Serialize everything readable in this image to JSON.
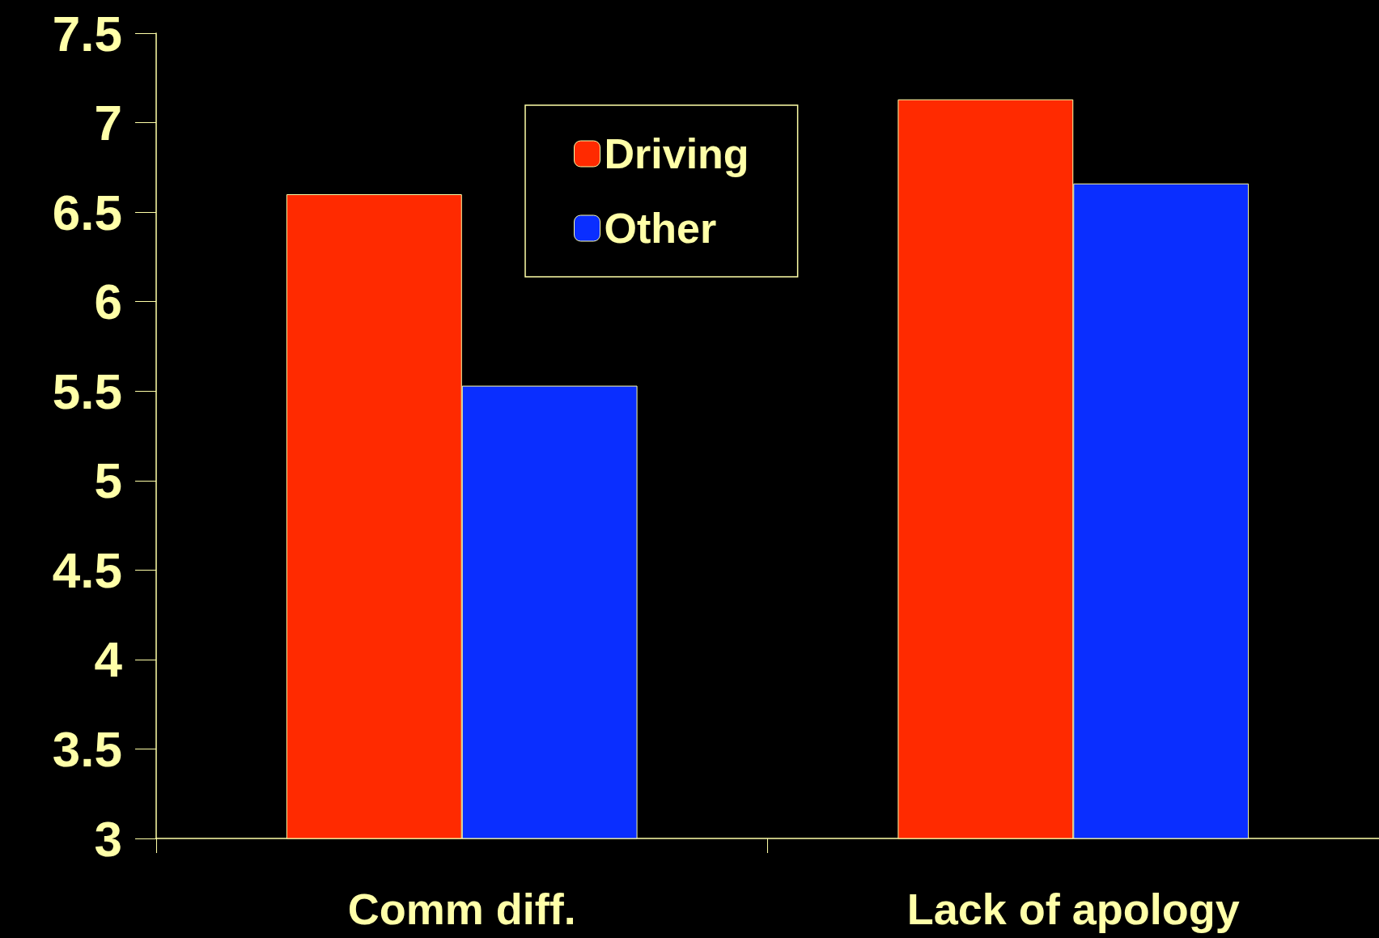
{
  "chart_data": {
    "type": "bar",
    "categories": [
      "Comm diff.",
      "Lack of apology"
    ],
    "series": [
      {
        "name": "Driving",
        "color": "#ff2a00",
        "values": [
          6.6,
          7.13
        ]
      },
      {
        "name": "Other",
        "color": "#0a2eff",
        "values": [
          5.53,
          6.66
        ]
      }
    ],
    "ylim": [
      3,
      7.5
    ],
    "yticks": [
      3,
      3.5,
      4,
      4.5,
      5,
      5.5,
      6,
      6.5,
      7,
      7.5
    ],
    "grid": false,
    "legend": "top"
  }
}
